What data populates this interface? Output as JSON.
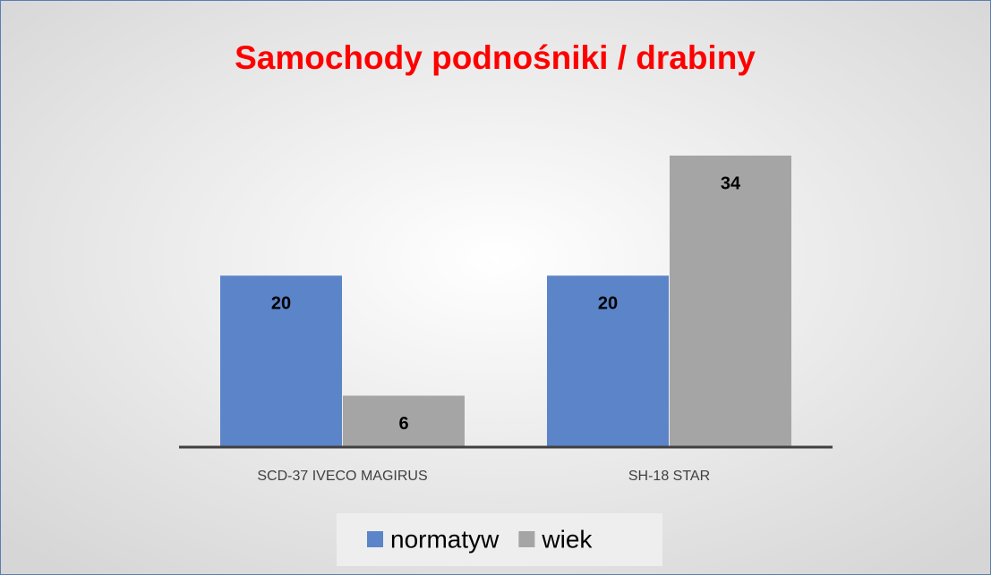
{
  "chart_data": {
    "type": "bar",
    "title": "Samochody podnośniki / drabiny",
    "categories": [
      "SCD-37 IVECO MAGIRUS",
      "SH-18 STAR"
    ],
    "series": [
      {
        "name": "normatyw",
        "color": "#5b84c9",
        "values": [
          20,
          20
        ]
      },
      {
        "name": "wiek",
        "color": "#a5a5a5",
        "values": [
          6,
          34
        ]
      }
    ],
    "legend": "bottom"
  }
}
